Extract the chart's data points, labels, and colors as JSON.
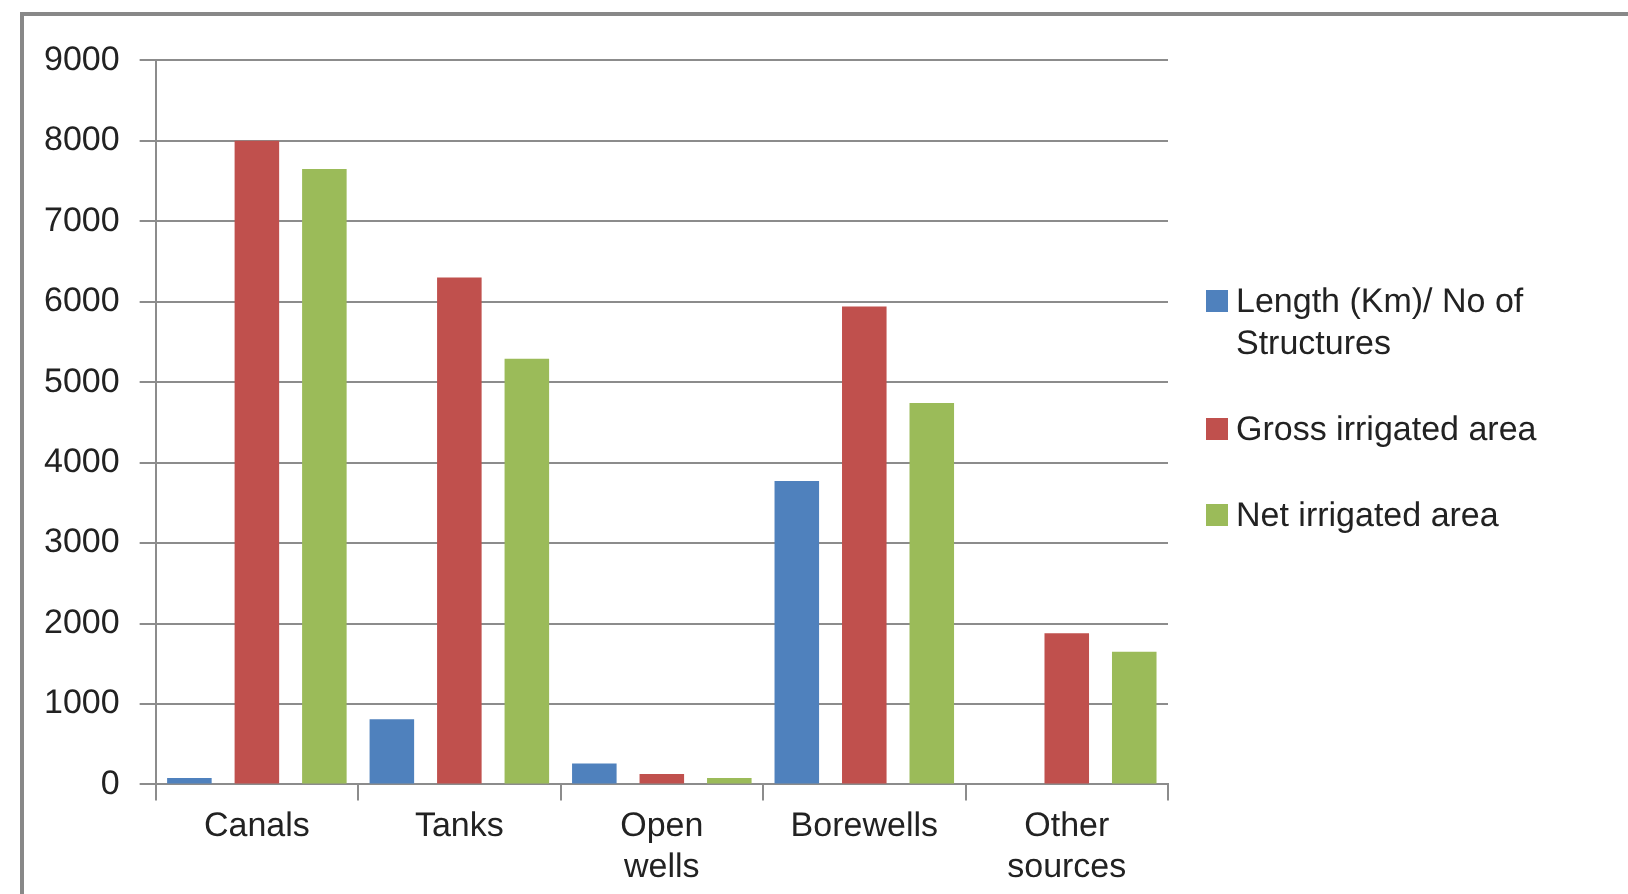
{
  "chart_data": {
    "type": "bar",
    "categories": [
      "Canals",
      "Tanks",
      "Open wells",
      "Borewells",
      "Other sources"
    ],
    "series": [
      {
        "name": "Length (Km)/ No of Structures",
        "color": "#4f81bd",
        "values": [
          80,
          810,
          260,
          3770,
          null
        ]
      },
      {
        "name": "Gross irrigated area",
        "color": "#c0504d",
        "values": [
          8000,
          6300,
          130,
          5940,
          1880
        ]
      },
      {
        "name": "Net irrigated area",
        "color": "#9bbb59",
        "values": [
          7650,
          5290,
          80,
          4740,
          1650
        ]
      }
    ],
    "ylim": [
      0,
      9000
    ],
    "yticks": [
      0,
      1000,
      2000,
      3000,
      4000,
      5000,
      6000,
      7000,
      8000,
      9000
    ],
    "grid": "y",
    "legend": "right"
  }
}
